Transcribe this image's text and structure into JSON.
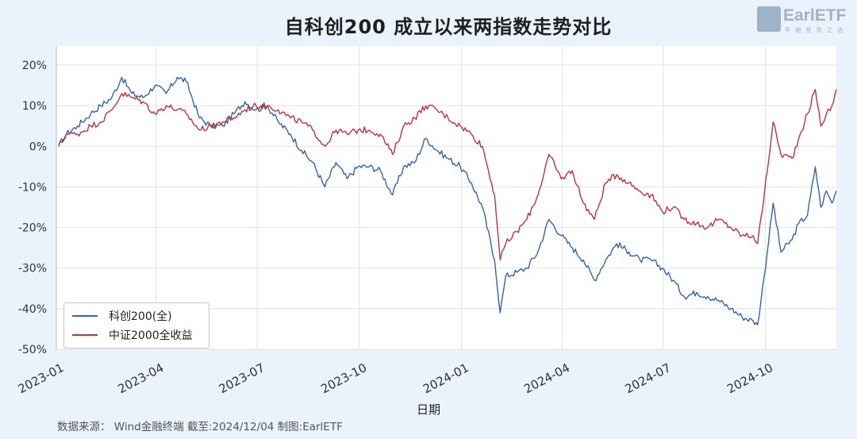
{
  "chart_data": {
    "type": "line",
    "title": "自科创200 成立以来两指数走势对比",
    "xlabel": "日期",
    "ylabel": "",
    "x_range": [
      "2023-01-01",
      "2024-12-04"
    ],
    "ylim": [
      -50,
      25
    ],
    "y_ticks": [
      20,
      10,
      0,
      -10,
      -20,
      -30,
      -40,
      -50
    ],
    "y_tick_labels": [
      "20%",
      "10%",
      "0%",
      "-10%",
      "-20%",
      "-30%",
      "-40%",
      "-50%"
    ],
    "x_ticks": [
      "2023-01-01",
      "2023-04-01",
      "2023-07-01",
      "2023-10-01",
      "2024-01-01",
      "2024-04-01",
      "2024-07-01",
      "2024-10-01"
    ],
    "x_tick_labels": [
      "2023-01",
      "2023-04",
      "2023-07",
      "2023-10",
      "2024-01",
      "2024-04",
      "2024-07",
      "2024-10"
    ],
    "grid": true,
    "legend_position": "bottom-left",
    "series": [
      {
        "name": "科创200(全)",
        "color": "#3563ad",
        "points": [
          [
            "2023-01-03",
            0
          ],
          [
            "2023-01-10",
            3
          ],
          [
            "2023-01-20",
            5
          ],
          [
            "2023-02-01",
            8
          ],
          [
            "2023-02-10",
            10
          ],
          [
            "2023-02-20",
            12
          ],
          [
            "2023-03-01",
            17
          ],
          [
            "2023-03-10",
            13
          ],
          [
            "2023-03-20",
            12
          ],
          [
            "2023-03-31",
            15
          ],
          [
            "2023-04-10",
            13
          ],
          [
            "2023-04-20",
            17
          ],
          [
            "2023-04-28",
            16
          ],
          [
            "2023-05-10",
            7
          ],
          [
            "2023-05-20",
            5
          ],
          [
            "2023-05-31",
            5
          ],
          [
            "2023-06-10",
            8
          ],
          [
            "2023-06-20",
            11
          ],
          [
            "2023-06-30",
            9
          ],
          [
            "2023-07-10",
            10
          ],
          [
            "2023-07-20",
            6
          ],
          [
            "2023-07-31",
            3
          ],
          [
            "2023-08-10",
            -1
          ],
          [
            "2023-08-20",
            -4
          ],
          [
            "2023-08-31",
            -10
          ],
          [
            "2023-09-10",
            -4
          ],
          [
            "2023-09-20",
            -8
          ],
          [
            "2023-09-30",
            -5
          ],
          [
            "2023-10-10",
            -5
          ],
          [
            "2023-10-20",
            -6
          ],
          [
            "2023-10-31",
            -12
          ],
          [
            "2023-11-10",
            -5
          ],
          [
            "2023-11-20",
            -4
          ],
          [
            "2023-11-30",
            2
          ],
          [
            "2023-12-10",
            -1
          ],
          [
            "2023-12-20",
            -3
          ],
          [
            "2023-12-31",
            -5
          ],
          [
            "2024-01-10",
            -9
          ],
          [
            "2024-01-20",
            -15
          ],
          [
            "2024-01-31",
            -28
          ],
          [
            "2024-02-05",
            -41
          ],
          [
            "2024-02-10",
            -32
          ],
          [
            "2024-02-20",
            -31
          ],
          [
            "2024-02-29",
            -30
          ],
          [
            "2024-03-10",
            -26
          ],
          [
            "2024-03-20",
            -18
          ],
          [
            "2024-03-31",
            -22
          ],
          [
            "2024-04-10",
            -25
          ],
          [
            "2024-04-20",
            -28
          ],
          [
            "2024-04-30",
            -33
          ],
          [
            "2024-05-10",
            -28
          ],
          [
            "2024-05-20",
            -24
          ],
          [
            "2024-05-31",
            -26
          ],
          [
            "2024-06-10",
            -28
          ],
          [
            "2024-06-20",
            -28
          ],
          [
            "2024-06-30",
            -30
          ],
          [
            "2024-07-10",
            -33
          ],
          [
            "2024-07-20",
            -37
          ],
          [
            "2024-07-31",
            -36
          ],
          [
            "2024-08-10",
            -37
          ],
          [
            "2024-08-20",
            -38
          ],
          [
            "2024-08-31",
            -40
          ],
          [
            "2024-09-10",
            -42
          ],
          [
            "2024-09-20",
            -43
          ],
          [
            "2024-09-24",
            -44
          ],
          [
            "2024-09-30",
            -32
          ],
          [
            "2024-10-08",
            -14
          ],
          [
            "2024-10-15",
            -26
          ],
          [
            "2024-10-25",
            -23
          ],
          [
            "2024-10-31",
            -19
          ],
          [
            "2024-11-08",
            -17
          ],
          [
            "2024-11-15",
            -5
          ],
          [
            "2024-11-20",
            -15
          ],
          [
            "2024-11-25",
            -11
          ],
          [
            "2024-11-30",
            -14
          ],
          [
            "2024-12-04",
            -11
          ]
        ]
      },
      {
        "name": "中证2000全收益",
        "color": "#c0333e",
        "points": [
          [
            "2023-01-03",
            0
          ],
          [
            "2023-01-10",
            3
          ],
          [
            "2023-01-20",
            3
          ],
          [
            "2023-02-01",
            5
          ],
          [
            "2023-02-10",
            6
          ],
          [
            "2023-02-20",
            9
          ],
          [
            "2023-03-01",
            13
          ],
          [
            "2023-03-10",
            12
          ],
          [
            "2023-03-20",
            11
          ],
          [
            "2023-03-31",
            8
          ],
          [
            "2023-04-10",
            10
          ],
          [
            "2023-04-20",
            9
          ],
          [
            "2023-04-28",
            8
          ],
          [
            "2023-05-10",
            4
          ],
          [
            "2023-05-20",
            5
          ],
          [
            "2023-05-31",
            6
          ],
          [
            "2023-06-10",
            7
          ],
          [
            "2023-06-20",
            9
          ],
          [
            "2023-06-30",
            10
          ],
          [
            "2023-07-10",
            10
          ],
          [
            "2023-07-20",
            9
          ],
          [
            "2023-07-31",
            7
          ],
          [
            "2023-08-10",
            6
          ],
          [
            "2023-08-20",
            4
          ],
          [
            "2023-08-31",
            0
          ],
          [
            "2023-09-10",
            4
          ],
          [
            "2023-09-20",
            3
          ],
          [
            "2023-09-30",
            4
          ],
          [
            "2023-10-10",
            4
          ],
          [
            "2023-10-20",
            3
          ],
          [
            "2023-10-31",
            -2
          ],
          [
            "2023-11-10",
            5
          ],
          [
            "2023-11-20",
            7
          ],
          [
            "2023-11-30",
            10
          ],
          [
            "2023-12-10",
            9
          ],
          [
            "2023-12-20",
            7
          ],
          [
            "2023-12-31",
            5
          ],
          [
            "2024-01-10",
            3
          ],
          [
            "2024-01-20",
            0
          ],
          [
            "2024-01-31",
            -12
          ],
          [
            "2024-02-05",
            -28
          ],
          [
            "2024-02-10",
            -24
          ],
          [
            "2024-02-20",
            -21
          ],
          [
            "2024-02-29",
            -18
          ],
          [
            "2024-03-10",
            -12
          ],
          [
            "2024-03-20",
            -2
          ],
          [
            "2024-03-31",
            -8
          ],
          [
            "2024-04-10",
            -6
          ],
          [
            "2024-04-20",
            -14
          ],
          [
            "2024-04-30",
            -18
          ],
          [
            "2024-05-10",
            -9
          ],
          [
            "2024-05-20",
            -7
          ],
          [
            "2024-05-31",
            -9
          ],
          [
            "2024-06-10",
            -11
          ],
          [
            "2024-06-20",
            -12
          ],
          [
            "2024-06-30",
            -16
          ],
          [
            "2024-07-10",
            -15
          ],
          [
            "2024-07-20",
            -18
          ],
          [
            "2024-07-31",
            -19
          ],
          [
            "2024-08-10",
            -20
          ],
          [
            "2024-08-20",
            -18
          ],
          [
            "2024-08-31",
            -20
          ],
          [
            "2024-09-10",
            -22
          ],
          [
            "2024-09-20",
            -22
          ],
          [
            "2024-09-24",
            -24
          ],
          [
            "2024-09-30",
            -12
          ],
          [
            "2024-10-08",
            6
          ],
          [
            "2024-10-15",
            -2
          ],
          [
            "2024-10-25",
            -3
          ],
          [
            "2024-10-31",
            2
          ],
          [
            "2024-11-08",
            8
          ],
          [
            "2024-11-15",
            14
          ],
          [
            "2024-11-20",
            5
          ],
          [
            "2024-11-25",
            8
          ],
          [
            "2024-11-30",
            10
          ],
          [
            "2024-12-04",
            14
          ]
        ]
      }
    ]
  },
  "logo": {
    "text": "EarlETF",
    "sub": "早 期 投 资 之 选"
  },
  "source_note": "数据来源：  Wind金融终端 截至:2024/12/04 制图:EarlETF"
}
